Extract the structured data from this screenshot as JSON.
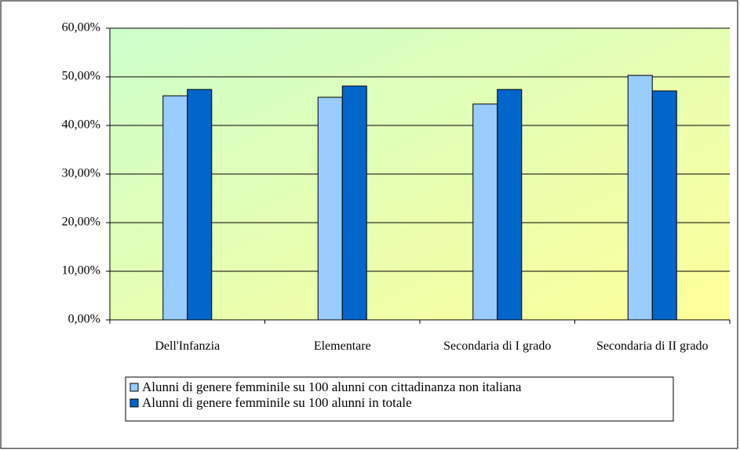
{
  "chart_data": {
    "type": "bar",
    "categories": [
      "Dell'Infanzia",
      "Elementare",
      "Secondaria di I grado",
      "Secondaria di II grado"
    ],
    "series": [
      {
        "name": "Alunni di genere femminile su 100 alunni con cittadinanza non italiana",
        "color": "#99ccff",
        "values": [
          46.1,
          45.8,
          44.4,
          50.3
        ]
      },
      {
        "name": "Alunni di genere femminile su 100 alunni in totale",
        "color": "#0066cc",
        "values": [
          47.4,
          48.1,
          47.4,
          47.1
        ]
      }
    ],
    "ylim": [
      0,
      60
    ],
    "yticks": [
      {
        "value": 0,
        "label": "0,00%"
      },
      {
        "value": 10,
        "label": "10,00%"
      },
      {
        "value": 20,
        "label": "20,00%"
      },
      {
        "value": 30,
        "label": "30,00%"
      },
      {
        "value": 40,
        "label": "40,00%"
      },
      {
        "value": 50,
        "label": "50,00%"
      },
      {
        "value": 60,
        "label": "60,00%"
      }
    ],
    "grid": true,
    "legend": "bottom"
  }
}
